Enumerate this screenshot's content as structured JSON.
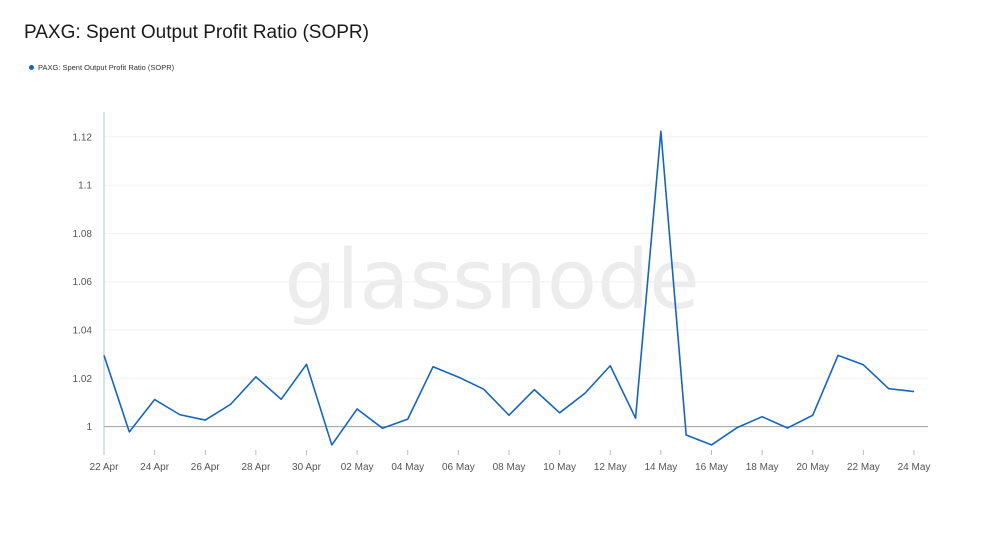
{
  "title": "PAXG: Spent Output Profit Ratio (SOPR)",
  "legend": [
    {
      "label": "PAXG: Spent Output Profit Ratio (SOPR)",
      "color": "#1565c0"
    }
  ],
  "watermark": "glassnode",
  "chart_data": {
    "type": "line",
    "title": "PAXG: Spent Output Profit Ratio (SOPR)",
    "xlabel": "",
    "ylabel": "",
    "x": [
      "22 Apr",
      "23 Apr",
      "24 Apr",
      "25 Apr",
      "26 Apr",
      "27 Apr",
      "28 Apr",
      "29 Apr",
      "30 Apr",
      "01 May",
      "02 May",
      "03 May",
      "04 May",
      "05 May",
      "06 May",
      "07 May",
      "08 May",
      "09 May",
      "10 May",
      "11 May",
      "12 May",
      "13 May",
      "14 May",
      "15 May",
      "16 May",
      "17 May",
      "18 May",
      "19 May",
      "20 May",
      "21 May",
      "22 May",
      "23 May",
      "24 May"
    ],
    "x_tick_labels": [
      "22 Apr",
      "24 Apr",
      "26 Apr",
      "28 Apr",
      "30 Apr",
      "02 May",
      "04 May",
      "06 May",
      "08 May",
      "10 May",
      "12 May",
      "14 May",
      "16 May",
      "18 May",
      "20 May",
      "22 May",
      "24 May"
    ],
    "series": [
      {
        "name": "PAXG: Spent Output Profit Ratio (SOPR)",
        "color": "#1565c0",
        "values": [
          1.0295,
          0.9978,
          1.0112,
          1.0049,
          1.0027,
          1.0092,
          1.0206,
          1.0113,
          1.0258,
          0.9924,
          1.0073,
          0.9993,
          1.0031,
          1.0248,
          1.0205,
          1.0155,
          1.0047,
          1.0153,
          1.0057,
          1.0138,
          1.0252,
          1.0035,
          1.1223,
          0.9965,
          0.9924,
          0.9995,
          1.0041,
          0.9994,
          1.0047,
          1.0295,
          1.0256,
          1.0157,
          1.0145
        ]
      }
    ],
    "y_ticks": [
      1,
      1.02,
      1.04,
      1.06,
      1.08,
      1.1,
      1.12
    ],
    "y_tick_labels": [
      "1",
      "1.02",
      "1.04",
      "1.06",
      "1.08",
      "1.1",
      "1.12"
    ],
    "ylim": [
      0.9903,
      1.1303
    ],
    "baseline": 1,
    "grid": true,
    "legend_position": "top-left"
  }
}
